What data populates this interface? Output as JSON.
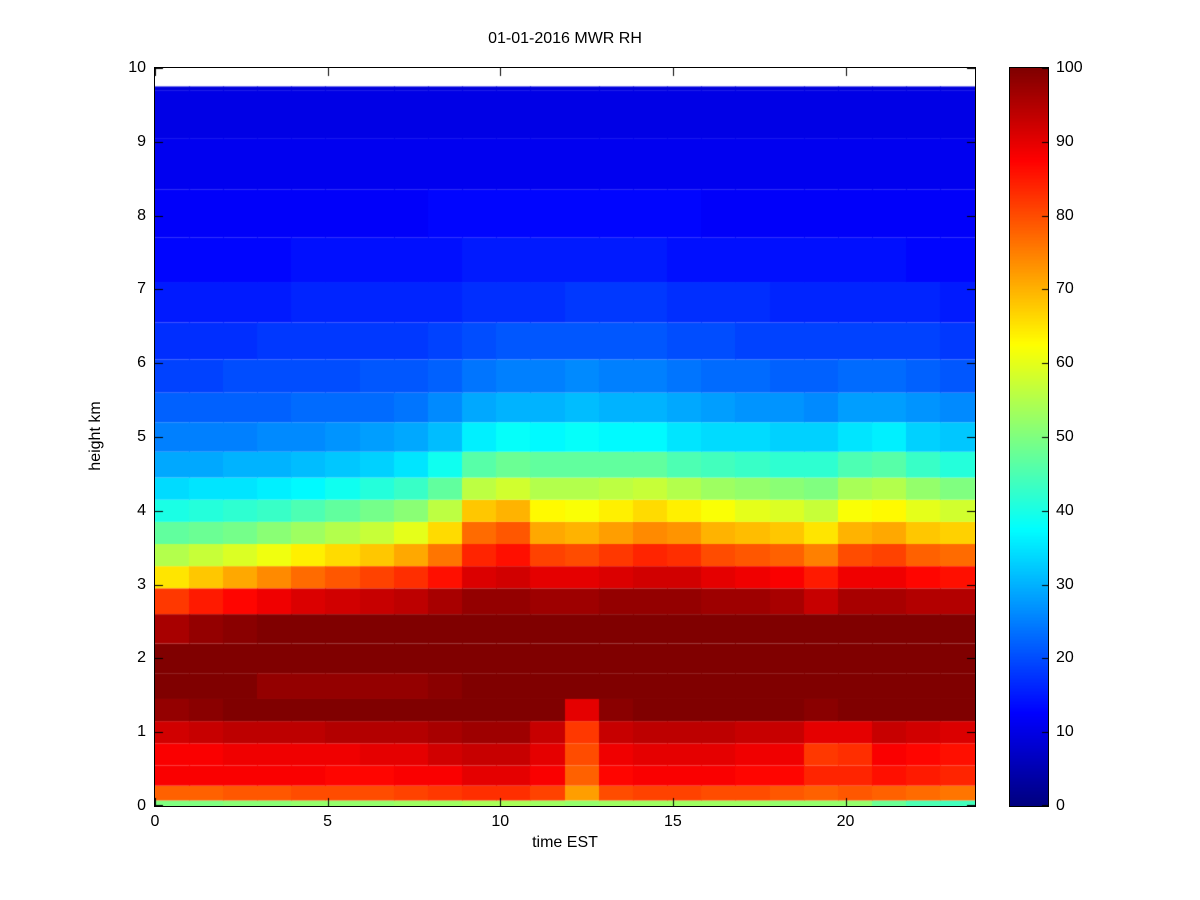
{
  "chart_data": {
    "type": "heatmap",
    "title": "01-01-2016 MWR RH",
    "xlabel": "time EST",
    "ylabel": "height km",
    "colormap": "jet",
    "xlim": [
      0,
      23.75
    ],
    "ylim": [
      0,
      10
    ],
    "clim": [
      0,
      100
    ],
    "data_top": 9.75,
    "xticks": [
      0,
      5,
      10,
      15,
      20
    ],
    "yticks": [
      0,
      1,
      2,
      3,
      4,
      5,
      6,
      7,
      8,
      9,
      10
    ],
    "colorbar_ticks": [
      0,
      10,
      20,
      30,
      40,
      50,
      60,
      70,
      80,
      90,
      100
    ],
    "hours": [
      0,
      1,
      2,
      3,
      4,
      5,
      6,
      7,
      8,
      9,
      10,
      11,
      12,
      13,
      14,
      15,
      16,
      17,
      18,
      19,
      20,
      21,
      22,
      23
    ],
    "heights": [
      0,
      0.15,
      0.4,
      0.7,
      1.0,
      1.3,
      1.6,
      2.0,
      2.4,
      2.8,
      3.1,
      3.4,
      3.7,
      4.0,
      4.3,
      4.6,
      5.0,
      5.4,
      5.8,
      6.3,
      6.8,
      7.4,
      8.0,
      8.7,
      9.4,
      10
    ],
    "values_note": "RH percent; values[hour][height_index], heights ascending from ground",
    "values": [
      [
        50,
        78,
        88,
        88,
        92,
        98,
        100,
        100,
        96,
        82,
        65,
        55,
        47,
        40,
        34,
        29,
        25,
        22,
        19,
        17,
        15,
        13,
        12,
        11,
        10,
        9
      ],
      [
        50,
        78,
        88,
        88,
        93,
        99,
        100,
        100,
        98,
        85,
        68,
        57,
        48,
        41,
        35,
        29,
        25,
        22,
        19,
        17,
        15,
        13,
        12,
        11,
        10,
        9
      ],
      [
        51,
        79,
        88,
        89,
        94,
        100,
        100,
        100,
        99,
        87,
        71,
        59,
        49,
        42,
        35,
        30,
        25,
        22,
        20,
        17,
        15,
        13,
        12,
        11,
        10,
        9
      ],
      [
        51,
        79,
        88,
        89,
        94,
        100,
        98,
        100,
        100,
        89,
        74,
        61,
        51,
        43,
        36,
        30,
        26,
        22,
        20,
        18,
        15,
        13,
        12,
        11,
        10,
        9
      ],
      [
        52,
        80,
        88,
        89,
        94,
        100,
        98,
        100,
        100,
        91,
        77,
        64,
        53,
        45,
        37,
        31,
        26,
        23,
        20,
        18,
        16,
        14,
        12,
        11,
        10,
        9
      ],
      [
        52,
        80,
        87,
        89,
        95,
        100,
        98,
        100,
        100,
        92,
        79,
        66,
        55,
        47,
        39,
        32,
        27,
        23,
        20,
        18,
        16,
        14,
        12,
        11,
        10,
        9
      ],
      [
        52,
        80,
        87,
        90,
        95,
        100,
        98,
        100,
        100,
        93,
        81,
        68,
        57,
        49,
        41,
        33,
        28,
        23,
        21,
        18,
        16,
        14,
        12,
        11,
        10,
        9
      ],
      [
        53,
        81,
        88,
        90,
        95,
        100,
        98,
        100,
        100,
        94,
        83,
        71,
        60,
        51,
        43,
        35,
        29,
        24,
        21,
        18,
        16,
        14,
        12,
        11,
        10,
        9
      ],
      [
        53,
        82,
        88,
        92,
        96,
        100,
        99,
        100,
        100,
        96,
        86,
        76,
        66,
        56,
        47,
        39,
        31,
        26,
        22,
        19,
        16,
        14,
        13,
        11,
        10,
        9
      ],
      [
        54,
        83,
        90,
        93,
        97,
        100,
        100,
        100,
        100,
        98,
        91,
        84,
        77,
        68,
        56,
        46,
        36,
        29,
        24,
        20,
        17,
        15,
        13,
        11,
        10,
        9
      ],
      [
        54,
        83,
        90,
        93,
        97,
        100,
        100,
        100,
        100,
        98,
        92,
        86,
        79,
        70,
        58,
        48,
        38,
        30,
        25,
        21,
        17,
        15,
        13,
        11,
        10,
        9
      ],
      [
        53,
        81,
        88,
        90,
        93,
        100,
        100,
        100,
        100,
        97,
        90,
        81,
        71,
        63,
        55,
        47,
        37,
        30,
        25,
        21,
        17,
        15,
        13,
        11,
        10,
        9
      ],
      [
        52,
        72,
        78,
        80,
        82,
        90,
        100,
        100,
        100,
        97,
        90,
        80,
        70,
        62,
        55,
        47,
        38,
        31,
        26,
        21,
        18,
        15,
        13,
        11,
        10,
        9
      ],
      [
        53,
        80,
        87,
        89,
        93,
        99,
        100,
        100,
        100,
        98,
        91,
        82,
        72,
        64,
        56,
        47,
        37,
        30,
        25,
        21,
        18,
        15,
        13,
        11,
        10,
        9
      ],
      [
        53,
        81,
        88,
        90,
        94,
        100,
        100,
        100,
        100,
        98,
        92,
        84,
        74,
        66,
        57,
        47,
        37,
        30,
        25,
        21,
        18,
        15,
        13,
        11,
        10,
        9
      ],
      [
        53,
        81,
        88,
        90,
        94,
        100,
        100,
        100,
        100,
        98,
        92,
        83,
        73,
        64,
        55,
        45,
        35,
        29,
        24,
        20,
        17,
        14,
        13,
        11,
        10,
        9
      ],
      [
        53,
        80,
        88,
        90,
        94,
        100,
        100,
        100,
        100,
        97,
        90,
        80,
        70,
        62,
        53,
        44,
        34,
        28,
        23,
        20,
        17,
        14,
        12,
        11,
        10,
        9
      ],
      [
        53,
        80,
        87,
        89,
        93,
        100,
        100,
        100,
        100,
        97,
        89,
        79,
        69,
        60,
        52,
        43,
        34,
        27,
        23,
        19,
        17,
        14,
        12,
        11,
        10,
        9
      ],
      [
        52,
        79,
        87,
        89,
        93,
        100,
        100,
        100,
        100,
        96,
        88,
        78,
        68,
        59,
        51,
        42,
        33,
        27,
        22,
        19,
        16,
        14,
        12,
        11,
        10,
        9
      ],
      [
        52,
        78,
        84,
        82,
        90,
        99,
        100,
        100,
        100,
        93,
        85,
        75,
        65,
        57,
        50,
        42,
        33,
        26,
        22,
        19,
        16,
        14,
        12,
        11,
        10,
        9
      ],
      [
        52,
        79,
        84,
        83,
        90,
        100,
        100,
        100,
        100,
        96,
        89,
        80,
        70,
        62,
        54,
        45,
        35,
        28,
        23,
        19,
        16,
        14,
        12,
        11,
        10,
        9
      ],
      [
        48,
        78,
        86,
        88,
        93,
        100,
        100,
        100,
        100,
        96,
        89,
        81,
        71,
        63,
        55,
        46,
        36,
        28,
        23,
        19,
        16,
        14,
        12,
        11,
        10,
        9
      ],
      [
        45,
        77,
        85,
        87,
        92,
        100,
        100,
        100,
        100,
        95,
        87,
        78,
        68,
        60,
        52,
        43,
        33,
        27,
        22,
        19,
        16,
        13,
        12,
        11,
        10,
        9
      ],
      [
        44,
        76,
        84,
        86,
        91,
        100,
        100,
        100,
        100,
        95,
        86,
        77,
        67,
        58,
        50,
        41,
        32,
        26,
        21,
        18,
        15,
        13,
        12,
        11,
        10,
        9
      ]
    ]
  }
}
